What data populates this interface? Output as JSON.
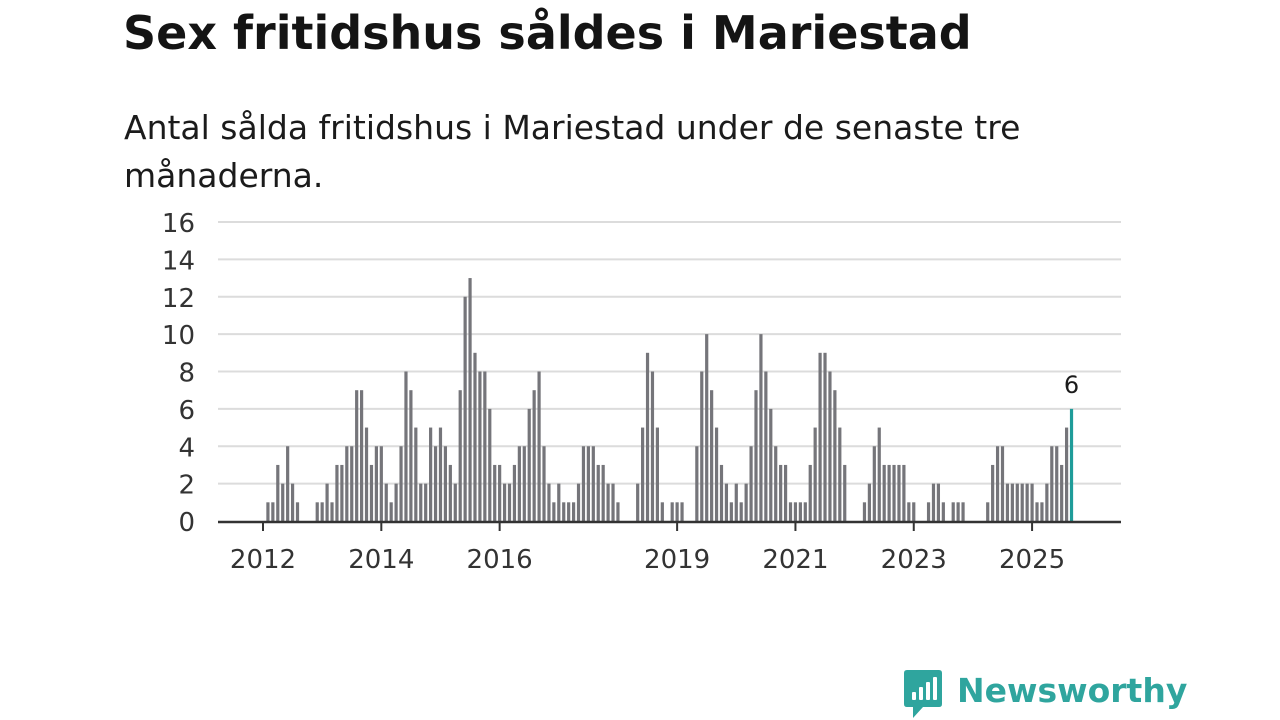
{
  "title": "Sex fritidshus såldes i Mariestad",
  "subtitle": "Antal sålda fritidshus i Mariestad under de senaste tre månaderna.",
  "brand": {
    "name": "Newsworthy",
    "color": "#2fa59e"
  },
  "colors": {
    "bar": "#75757a",
    "highlight": "#1f9c99",
    "grid": "#dcdcdc",
    "axis": "#333333"
  },
  "chart_data": {
    "type": "bar",
    "title": "Sex fritidshus såldes i Mariestad",
    "subtitle": "Antal sålda fritidshus i Mariestad under de senaste tre månaderna.",
    "xlabel": "",
    "ylabel": "",
    "ylim": [
      0,
      16
    ],
    "yticks": [
      0,
      2,
      4,
      6,
      8,
      10,
      12,
      14,
      16
    ],
    "x_start": "2011-01",
    "frequency": "monthly",
    "x_tick_labels": [
      {
        "label": "2012",
        "index": 12
      },
      {
        "label": "2014",
        "index": 36
      },
      {
        "label": "2016",
        "index": 60
      },
      {
        "label": "2019",
        "index": 96
      },
      {
        "label": "2021",
        "index": 120
      },
      {
        "label": "2023",
        "index": 144
      },
      {
        "label": "2025",
        "index": 168
      }
    ],
    "values": [
      0,
      0,
      0,
      0,
      0,
      0,
      0,
      0,
      0,
      0,
      0,
      0,
      0,
      1,
      1,
      3,
      2,
      4,
      2,
      1,
      0,
      0,
      0,
      1,
      1,
      2,
      1,
      3,
      3,
      4,
      4,
      7,
      7,
      5,
      3,
      4,
      4,
      2,
      1,
      2,
      4,
      8,
      7,
      5,
      2,
      2,
      5,
      4,
      5,
      4,
      3,
      2,
      7,
      12,
      13,
      9,
      8,
      8,
      6,
      3,
      3,
      2,
      2,
      3,
      4,
      4,
      6,
      7,
      8,
      4,
      2,
      1,
      2,
      1,
      1,
      1,
      2,
      4,
      4,
      4,
      3,
      3,
      2,
      2,
      1,
      0,
      0,
      0,
      2,
      5,
      9,
      8,
      5,
      1,
      0,
      1,
      1,
      1,
      0,
      0,
      4,
      8,
      10,
      7,
      5,
      3,
      2,
      1,
      2,
      1,
      2,
      4,
      7,
      10,
      8,
      6,
      4,
      3,
      3,
      1,
      1,
      1,
      1,
      3,
      5,
      9,
      9,
      8,
      7,
      5,
      3,
      0,
      0,
      0,
      1,
      2,
      4,
      5,
      3,
      3,
      3,
      3,
      3,
      1,
      1,
      0,
      0,
      1,
      2,
      2,
      1,
      0,
      1,
      1,
      1,
      0,
      0,
      0,
      0,
      1,
      3,
      4,
      4,
      2,
      2,
      2,
      2,
      2,
      2,
      1,
      1,
      2,
      4,
      4,
      3,
      5,
      6
    ],
    "highlight": {
      "index": 176,
      "value": 6,
      "label": "6"
    }
  }
}
